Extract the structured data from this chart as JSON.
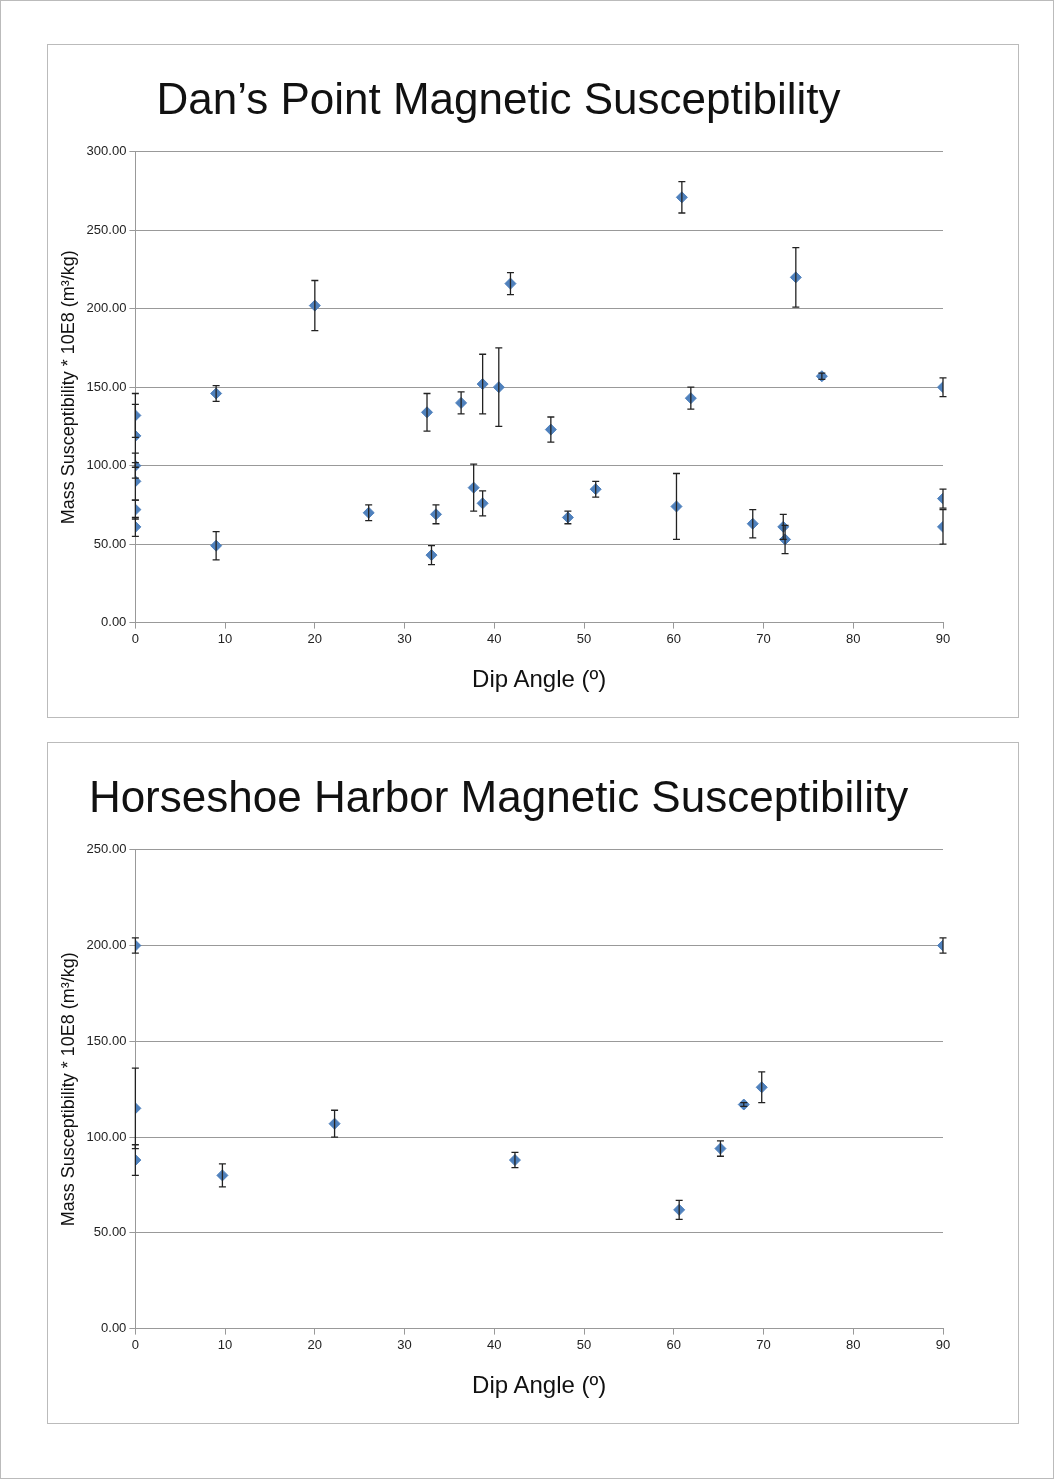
{
  "chart_data": [
    {
      "type": "scatter",
      "title": "Dan’s Point Magnetic Susceptibility",
      "xlabel": "Dip Angle (º)",
      "ylabel": "Mass Susceptibility * 10E8 (m³/kg)",
      "series": [
        {
          "color": "#4f81bd",
          "x": [
            0,
            0,
            0,
            0,
            0,
            0,
            9,
            9,
            20,
            26,
            32.5,
            33,
            33.5,
            36.3,
            37.7,
            38.7,
            38.7,
            40.5,
            41.8,
            46.3,
            48.2,
            51.3,
            60.3,
            60.9,
            61.9,
            68.8,
            72.2,
            72.4,
            73.6,
            76.5,
            90,
            90,
            90
          ],
          "values": [
            132,
            119,
            100,
            90,
            72,
            61,
            146,
            49,
            202,
            70,
            134,
            43,
            69,
            140,
            86,
            152,
            76,
            150,
            216,
            123,
            67,
            85,
            74,
            271,
            143,
            63,
            61,
            53,
            220,
            157,
            150,
            79,
            61
          ],
          "errors": [
            14,
            20,
            8,
            12,
            6,
            6,
            5,
            9,
            16,
            5,
            12,
            6,
            6,
            7,
            15,
            19,
            8,
            25,
            7,
            8,
            4,
            5,
            21,
            10,
            7,
            9,
            8,
            9,
            19,
            2,
            6,
            6,
            11
          ]
        }
      ],
      "xlim": [
        0,
        90
      ],
      "xticks": [
        0,
        10,
        20,
        30,
        40,
        50,
        60,
        70,
        80,
        90
      ],
      "ylim": [
        0,
        300
      ],
      "yticks": [
        {
          "value": 0,
          "label": "0.00"
        },
        {
          "value": 50,
          "label": "50.00"
        },
        {
          "value": 100,
          "label": "100.00"
        },
        {
          "value": 150,
          "label": "150.00"
        },
        {
          "value": 200,
          "label": "200.00"
        },
        {
          "value": 250,
          "label": "250.00"
        },
        {
          "value": 300,
          "label": "300.00"
        }
      ],
      "grid": "y",
      "marker": "diamond",
      "legend": false
    },
    {
      "type": "scatter",
      "title": "Horseshoe Harbor Magnetic Susceptibility",
      "xlabel": "Dip Angle (º)",
      "ylabel": "Mass Susceptibility * 10E8 (m³/kg)",
      "series": [
        {
          "color": "#4f81bd",
          "x": [
            0,
            0,
            0,
            9.7,
            22.2,
            42.3,
            60.6,
            65.2,
            67.8,
            69.8,
            90
          ],
          "values": [
            200,
            115,
            88,
            80,
            107,
            88,
            62,
            94,
            117,
            126,
            200
          ],
          "errors": [
            4,
            21,
            8,
            6,
            7,
            4,
            5,
            4,
            1,
            8,
            4
          ]
        }
      ],
      "xlim": [
        0,
        90
      ],
      "xticks": [
        0,
        10,
        20,
        30,
        40,
        50,
        60,
        70,
        80,
        90
      ],
      "ylim": [
        0,
        250
      ],
      "yticks": [
        {
          "value": 0,
          "label": "0.00"
        },
        {
          "value": 50,
          "label": "50.00"
        },
        {
          "value": 100,
          "label": "100.00"
        },
        {
          "value": 150,
          "label": "150.00"
        },
        {
          "value": 200,
          "label": "200.00"
        },
        {
          "value": 250,
          "label": "250.00"
        }
      ],
      "grid": "y",
      "marker": "diamond",
      "legend": false
    }
  ]
}
